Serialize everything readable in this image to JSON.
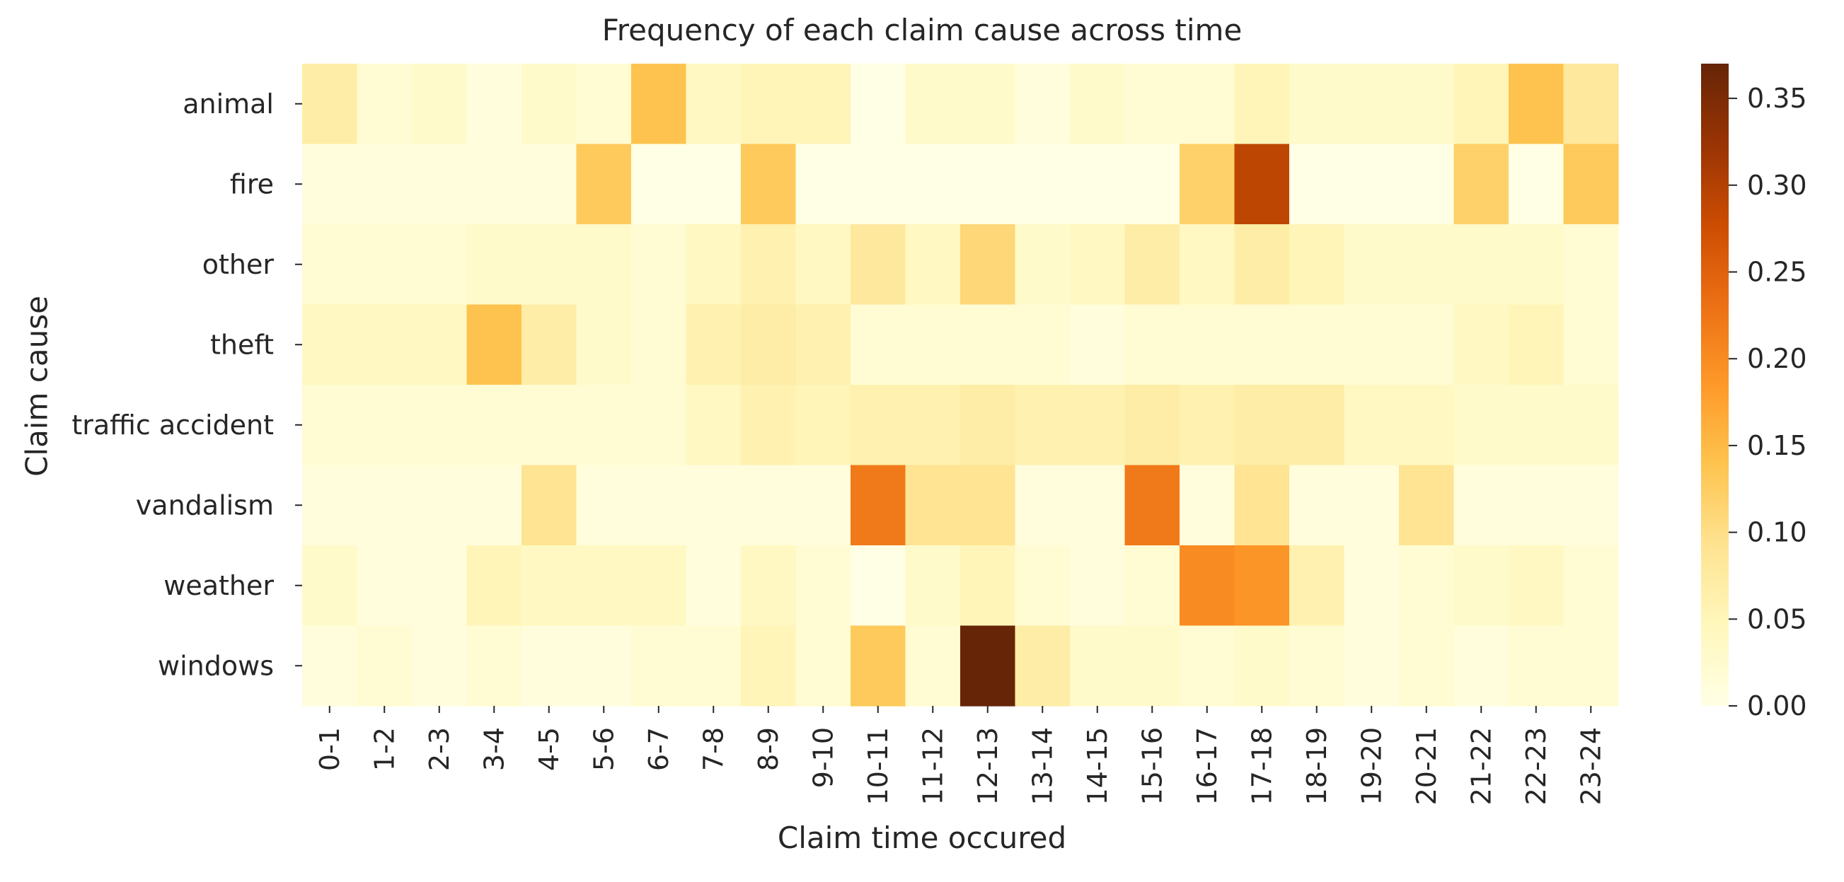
{
  "chart_data": {
    "type": "heatmap",
    "title": "Frequency of each claim cause across time",
    "xlabel": "Claim time occured",
    "ylabel": "Claim cause",
    "x": [
      "0-1",
      "1-2",
      "2-3",
      "3-4",
      "4-5",
      "5-6",
      "6-7",
      "7-8",
      "8-9",
      "9-10",
      "10-11",
      "11-12",
      "12-13",
      "13-14",
      "14-15",
      "15-16",
      "16-17",
      "17-18",
      "18-19",
      "19-20",
      "20-21",
      "21-22",
      "22-23",
      "23-24"
    ],
    "y": [
      "animal",
      "fire",
      "other",
      "theft",
      "traffic accident",
      "vandalism",
      "weather",
      "windows"
    ],
    "values": [
      [
        0.07,
        0.02,
        0.03,
        0.01,
        0.03,
        0.02,
        0.14,
        0.04,
        0.05,
        0.05,
        0.0,
        0.03,
        0.03,
        0.01,
        0.03,
        0.02,
        0.02,
        0.05,
        0.03,
        0.03,
        0.03,
        0.05,
        0.14,
        0.08
      ],
      [
        0.01,
        0.01,
        0.01,
        0.01,
        0.01,
        0.13,
        0.0,
        0.0,
        0.13,
        0.0,
        0.0,
        0.0,
        0.0,
        0.0,
        0.0,
        0.0,
        0.12,
        0.29,
        0.0,
        0.0,
        0.0,
        0.12,
        0.0,
        0.13
      ],
      [
        0.02,
        0.02,
        0.02,
        0.03,
        0.03,
        0.03,
        0.02,
        0.04,
        0.06,
        0.04,
        0.08,
        0.04,
        0.11,
        0.03,
        0.04,
        0.07,
        0.04,
        0.07,
        0.05,
        0.03,
        0.03,
        0.03,
        0.03,
        0.02
      ],
      [
        0.04,
        0.04,
        0.04,
        0.14,
        0.07,
        0.03,
        0.02,
        0.06,
        0.07,
        0.06,
        0.02,
        0.02,
        0.02,
        0.02,
        0.01,
        0.02,
        0.02,
        0.02,
        0.02,
        0.02,
        0.02,
        0.04,
        0.05,
        0.02
      ],
      [
        0.02,
        0.02,
        0.02,
        0.02,
        0.02,
        0.02,
        0.02,
        0.04,
        0.06,
        0.05,
        0.06,
        0.06,
        0.07,
        0.06,
        0.06,
        0.07,
        0.06,
        0.07,
        0.07,
        0.04,
        0.04,
        0.03,
        0.03,
        0.03
      ],
      [
        0.01,
        0.01,
        0.01,
        0.01,
        0.09,
        0.01,
        0.01,
        0.01,
        0.01,
        0.01,
        0.22,
        0.09,
        0.09,
        0.01,
        0.01,
        0.22,
        0.01,
        0.09,
        0.01,
        0.01,
        0.09,
        0.01,
        0.01,
        0.01
      ],
      [
        0.03,
        0.01,
        0.01,
        0.05,
        0.04,
        0.04,
        0.04,
        0.01,
        0.04,
        0.02,
        0.0,
        0.03,
        0.05,
        0.02,
        0.01,
        0.02,
        0.2,
        0.19,
        0.06,
        0.01,
        0.02,
        0.03,
        0.04,
        0.02
      ],
      [
        0.01,
        0.02,
        0.01,
        0.02,
        0.01,
        0.01,
        0.02,
        0.02,
        0.05,
        0.02,
        0.13,
        0.02,
        0.37,
        0.07,
        0.03,
        0.03,
        0.02,
        0.03,
        0.02,
        0.01,
        0.02,
        0.01,
        0.02,
        0.02
      ]
    ],
    "colorbar": {
      "min": 0.0,
      "max": 0.37,
      "ticks": [
        "0.00",
        "0.05",
        "0.10",
        "0.15",
        "0.20",
        "0.25",
        "0.30",
        "0.35"
      ]
    },
    "colormap": "YlOrBr",
    "grid": false
  }
}
